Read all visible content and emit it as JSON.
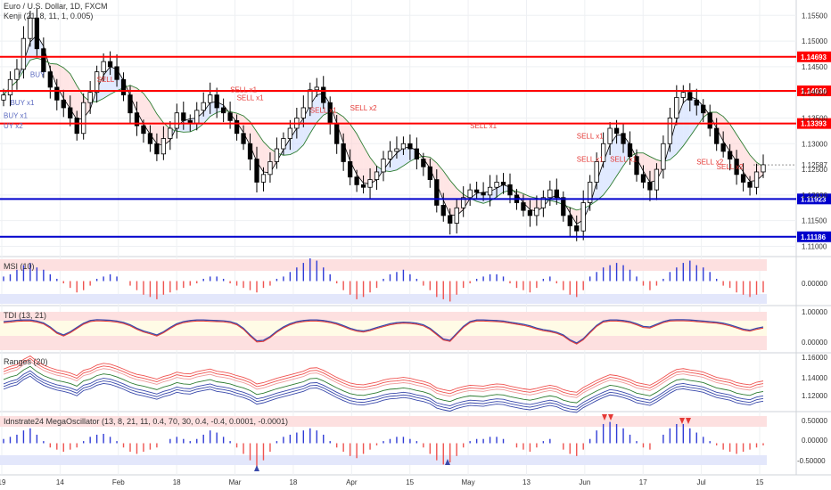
{
  "header": {
    "title": "Euro / U.S. Dollar, 1D, FXCM",
    "indicator": "Kenji (21, 8, 11, 1, 0.005)"
  },
  "panes": {
    "msi": {
      "title": "MSI (10)",
      "ticks": [
        "0.00000"
      ]
    },
    "tdi": {
      "title": "TDI (13, 21)",
      "ticks": [
        "1.00000",
        "0.00000"
      ]
    },
    "ranges": {
      "title": "Ranges (20)",
      "ticks": [
        "1.16000",
        "1.14000",
        "1.12000"
      ]
    },
    "mega": {
      "title": "Idnstrate24 MegaOscillator (13, 8, 21, 11, 0.4, 70, 30, 0.4, -0.4, 0.0001, -0.0001)",
      "ticks": [
        "0.50000",
        "0.00000",
        "-0.50000"
      ]
    }
  },
  "colors": {
    "up": "#ffffff",
    "down": "#000000",
    "red_line": "#ff0000",
    "blue_line": "#0000cc",
    "sell": "#e53935",
    "buy": "#5c6bc0",
    "grid": "#eef0f3"
  },
  "chart_data": {
    "type": "candlestick",
    "symbol": "Euro / U.S. Dollar, 1D, FXCM",
    "price_ticks": [
      "1.15500",
      "1.15000",
      "1.14500",
      "1.14000",
      "1.13500",
      "1.13000",
      "1.12500",
      "1.12000",
      "1.11500",
      "1.11000"
    ],
    "x_ticks": [
      "19",
      "14",
      "Feb",
      "18",
      "Mar",
      "18",
      "Apr",
      "15",
      "May",
      "13",
      "Jun",
      "17",
      "Jul",
      "15"
    ],
    "ylim": [
      1.108,
      1.158
    ],
    "levels": [
      {
        "label": "1.14693",
        "value": 1.14693,
        "color": "#ff0000"
      },
      {
        "label": "1.14030",
        "value": 1.1403,
        "color": "#ff0000"
      },
      {
        "label": "1.13393",
        "value": 1.13393,
        "color": "#ff0000"
      },
      {
        "label": "1.11923",
        "value": 1.11923,
        "color": "#0000cc"
      },
      {
        "label": "1.11186",
        "value": 1.11186,
        "color": "#0000cc"
      }
    ],
    "last_price": {
      "label": "1.12587",
      "value": 1.12587
    },
    "close": [
      1.1395,
      1.1425,
      1.1445,
      1.1505,
      1.1545,
      1.1485,
      1.144,
      1.141,
      1.1385,
      1.137,
      1.135,
      1.132,
      1.138,
      1.14,
      1.144,
      1.146,
      1.145,
      1.1425,
      1.1395,
      1.136,
      1.1335,
      1.132,
      1.13,
      1.128,
      1.131,
      1.133,
      1.136,
      1.1345,
      1.134,
      1.1365,
      1.138,
      1.1395,
      1.137,
      1.136,
      1.1345,
      1.132,
      1.13,
      1.127,
      1.1225,
      1.124,
      1.1265,
      1.129,
      1.131,
      1.133,
      1.135,
      1.137,
      1.1405,
      1.141,
      1.138,
      1.134,
      1.13,
      1.1265,
      1.1235,
      1.122,
      1.1215,
      1.123,
      1.1245,
      1.127,
      1.1285,
      1.129,
      1.13,
      1.129,
      1.127,
      1.1255,
      1.123,
      1.118,
      1.116,
      1.1145,
      1.1175,
      1.1195,
      1.121,
      1.1205,
      1.12,
      1.1215,
      1.1225,
      1.122,
      1.12,
      1.1185,
      1.117,
      1.116,
      1.1175,
      1.1195,
      1.121,
      1.1195,
      1.116,
      1.114,
      1.113,
      1.1185,
      1.1225,
      1.1265,
      1.13,
      1.133,
      1.132,
      1.13,
      1.1275,
      1.124,
      1.1225,
      1.121,
      1.125,
      1.13,
      1.135,
      1.139,
      1.14,
      1.1385,
      1.1375,
      1.136,
      1.133,
      1.13,
      1.1285,
      1.127,
      1.124,
      1.1225,
      1.1215,
      1.1245,
      1.1259
    ],
    "series": [
      {
        "name": "MSI (10)",
        "ylim": [
          -1,
          1
        ],
        "values": [
          0.2,
          0.3,
          0.5,
          0.7,
          0.8,
          0.6,
          0.5,
          0.3,
          0.1,
          -0.1,
          -0.3,
          -0.5,
          -0.4,
          -0.2,
          0.1,
          0.2,
          0.3,
          0.2,
          0.0,
          -0.2,
          -0.4,
          -0.6,
          -0.7,
          -0.8,
          -0.6,
          -0.5,
          -0.4,
          -0.3,
          -0.2,
          -0.1,
          0.1,
          0.2,
          0.2,
          0.1,
          -0.1,
          -0.2,
          -0.3,
          -0.4,
          -0.5,
          -0.3,
          -0.2,
          0.1,
          0.2,
          0.4,
          0.6,
          0.8,
          1.0,
          0.9,
          0.6,
          0.3,
          -0.1,
          -0.4,
          -0.6,
          -0.8,
          -0.7,
          -0.5,
          -0.3,
          0.1,
          0.3,
          0.4,
          0.5,
          0.3,
          0.1,
          -0.2,
          -0.4,
          -0.7,
          -0.8,
          -0.9,
          -0.6,
          -0.3,
          -0.1,
          0.1,
          0.2,
          0.3,
          0.3,
          0.2,
          -0.1,
          -0.3,
          -0.4,
          -0.5,
          -0.3,
          0.1,
          0.2,
          -0.1,
          -0.4,
          -0.6,
          -0.7,
          -0.4,
          0.2,
          0.4,
          0.6,
          0.7,
          0.8,
          0.7,
          0.5,
          0.2,
          -0.2,
          -0.4,
          -0.2,
          0.1,
          0.4,
          0.6,
          0.8,
          0.9,
          0.7,
          0.6,
          0.4,
          0.1,
          -0.2,
          -0.3,
          -0.5,
          -0.6,
          -0.7,
          -0.6,
          -0.5
        ]
      },
      {
        "name": "TDI (13, 21)",
        "ylim": [
          -0.3,
          1.3
        ],
        "values": [
          0.8,
          0.82,
          0.85,
          0.86,
          0.86,
          0.82,
          0.75,
          0.6,
          0.4,
          0.3,
          0.42,
          0.58,
          0.74,
          0.84,
          0.87,
          0.86,
          0.85,
          0.82,
          0.77,
          0.68,
          0.55,
          0.45,
          0.38,
          0.3,
          0.42,
          0.58,
          0.72,
          0.8,
          0.84,
          0.86,
          0.86,
          0.85,
          0.84,
          0.83,
          0.8,
          0.72,
          0.55,
          0.3,
          0.08,
          0.1,
          0.24,
          0.44,
          0.6,
          0.72,
          0.8,
          0.84,
          0.86,
          0.86,
          0.84,
          0.8,
          0.74,
          0.65,
          0.55,
          0.48,
          0.45,
          0.5,
          0.58,
          0.65,
          0.72,
          0.76,
          0.78,
          0.77,
          0.74,
          0.68,
          0.55,
          0.35,
          0.15,
          0.1,
          0.36,
          0.62,
          0.8,
          0.86,
          0.86,
          0.85,
          0.84,
          0.82,
          0.78,
          0.74,
          0.7,
          0.64,
          0.56,
          0.5,
          0.46,
          0.4,
          0.3,
          0.12,
          0.0,
          0.16,
          0.42,
          0.66,
          0.82,
          0.86,
          0.86,
          0.84,
          0.8,
          0.72,
          0.62,
          0.6,
          0.7,
          0.8,
          0.86,
          0.87,
          0.87,
          0.86,
          0.84,
          0.82,
          0.8,
          0.78,
          0.74,
          0.68,
          0.6,
          0.52,
          0.48,
          0.55,
          0.6
        ]
      },
      {
        "name": "Ranges (20)",
        "ylim": [
          1.105,
          1.168
        ],
        "values": [
          1.1395,
          1.1425,
          1.1445,
          1.1505,
          1.1545,
          1.1485,
          1.144,
          1.141,
          1.1385,
          1.137,
          1.135,
          1.132,
          1.138,
          1.14,
          1.144,
          1.146,
          1.145,
          1.1425,
          1.1395,
          1.136,
          1.1335,
          1.132,
          1.13,
          1.128,
          1.131,
          1.133,
          1.136,
          1.1345,
          1.134,
          1.1365,
          1.138,
          1.1395,
          1.137,
          1.136,
          1.1345,
          1.132,
          1.13,
          1.127,
          1.1225,
          1.124,
          1.1265,
          1.129,
          1.131,
          1.133,
          1.135,
          1.137,
          1.1405,
          1.141,
          1.138,
          1.134,
          1.13,
          1.1265,
          1.1235,
          1.122,
          1.1215,
          1.123,
          1.1245,
          1.127,
          1.1285,
          1.129,
          1.13,
          1.129,
          1.127,
          1.1255,
          1.123,
          1.118,
          1.116,
          1.1145,
          1.1175,
          1.1195,
          1.121,
          1.1205,
          1.12,
          1.1215,
          1.1225,
          1.122,
          1.12,
          1.1185,
          1.117,
          1.116,
          1.1175,
          1.1195,
          1.121,
          1.1195,
          1.116,
          1.114,
          1.113,
          1.1185,
          1.1225,
          1.1265,
          1.13,
          1.133,
          1.132,
          1.13,
          1.1275,
          1.124,
          1.1225,
          1.121,
          1.125,
          1.13,
          1.135,
          1.139,
          1.14,
          1.1385,
          1.1375,
          1.136,
          1.133,
          1.13,
          1.1285,
          1.127,
          1.124,
          1.1225,
          1.1215,
          1.1245,
          1.1259
        ]
      },
      {
        "name": "Idnstrate24 MegaOscillator",
        "ylim": [
          -0.7,
          0.7
        ],
        "values": [
          0.1,
          0.15,
          0.2,
          0.3,
          0.35,
          0.2,
          0.05,
          -0.1,
          -0.15,
          -0.2,
          -0.15,
          -0.1,
          0.05,
          0.15,
          0.2,
          0.22,
          0.15,
          0.05,
          -0.1,
          -0.2,
          -0.25,
          -0.2,
          -0.15,
          -0.1,
          0.0,
          0.1,
          0.15,
          0.1,
          0.05,
          0.1,
          0.2,
          0.3,
          0.25,
          0.15,
          0.05,
          -0.1,
          -0.25,
          -0.4,
          -0.55,
          -0.4,
          -0.2,
          0.05,
          0.15,
          0.2,
          0.25,
          0.3,
          0.35,
          0.3,
          0.2,
          0.05,
          -0.1,
          -0.2,
          -0.3,
          -0.35,
          -0.25,
          -0.15,
          -0.05,
          0.05,
          0.1,
          0.15,
          0.15,
          0.1,
          0.05,
          -0.1,
          -0.25,
          -0.4,
          -0.5,
          -0.45,
          -0.3,
          -0.1,
          0.05,
          0.1,
          0.1,
          0.15,
          0.15,
          0.1,
          0.0,
          -0.1,
          -0.15,
          -0.2,
          -0.1,
          0.05,
          0.1,
          0.0,
          -0.15,
          -0.25,
          -0.3,
          -0.15,
          0.1,
          0.3,
          0.45,
          0.5,
          0.45,
          0.35,
          0.2,
          0.05,
          -0.1,
          -0.15,
          0.0,
          0.2,
          0.35,
          0.45,
          0.45,
          0.35,
          0.25,
          0.15,
          0.05,
          -0.05,
          -0.15,
          -0.2,
          -0.25,
          -0.2,
          -0.15,
          -0.1,
          -0.05
        ]
      }
    ],
    "signals": [
      {
        "text": "BUY x1",
        "kind": "buy",
        "index": 1,
        "value": 1.1375
      },
      {
        "text": "BUY x1",
        "kind": "buy",
        "index": 0,
        "value": 1.135
      },
      {
        "text": "BUY",
        "kind": "buy",
        "index": 7,
        "value": 1.143
      },
      {
        "text": "UY x2",
        "kind": "buy",
        "index": 0,
        "value": 1.133
      },
      {
        "text": "SELL",
        "kind": "sell",
        "index": 24,
        "value": 1.142
      },
      {
        "text": "SELL x1",
        "kind": "sell",
        "index": 56,
        "value": 1.14
      },
      {
        "text": "SELL x1",
        "kind": "sell",
        "index": 58,
        "value": 1.1385
      },
      {
        "text": "SELL x1",
        "kind": "sell",
        "index": 77,
        "value": 1.136
      },
      {
        "text": "SELL x2",
        "kind": "sell",
        "index": 86,
        "value": 1.1365
      },
      {
        "text": "SELL x1",
        "kind": "sell",
        "index": 117,
        "value": 1.133
      },
      {
        "text": "SELL x1",
        "kind": "sell",
        "index": 143,
        "value": 1.131
      },
      {
        "text": "SELL x1",
        "kind": "sell",
        "index": 143,
        "value": 1.1265
      },
      {
        "text": "SELL x1",
        "kind": "sell",
        "index": 152,
        "value": 1.1265
      },
      {
        "text": "SELL x2",
        "kind": "sell",
        "index": 174,
        "value": 1.126
      },
      {
        "text": "SELL x2",
        "kind": "sell",
        "index": 178,
        "value": 1.125
      }
    ],
    "grid": true,
    "legend": "top-left"
  }
}
